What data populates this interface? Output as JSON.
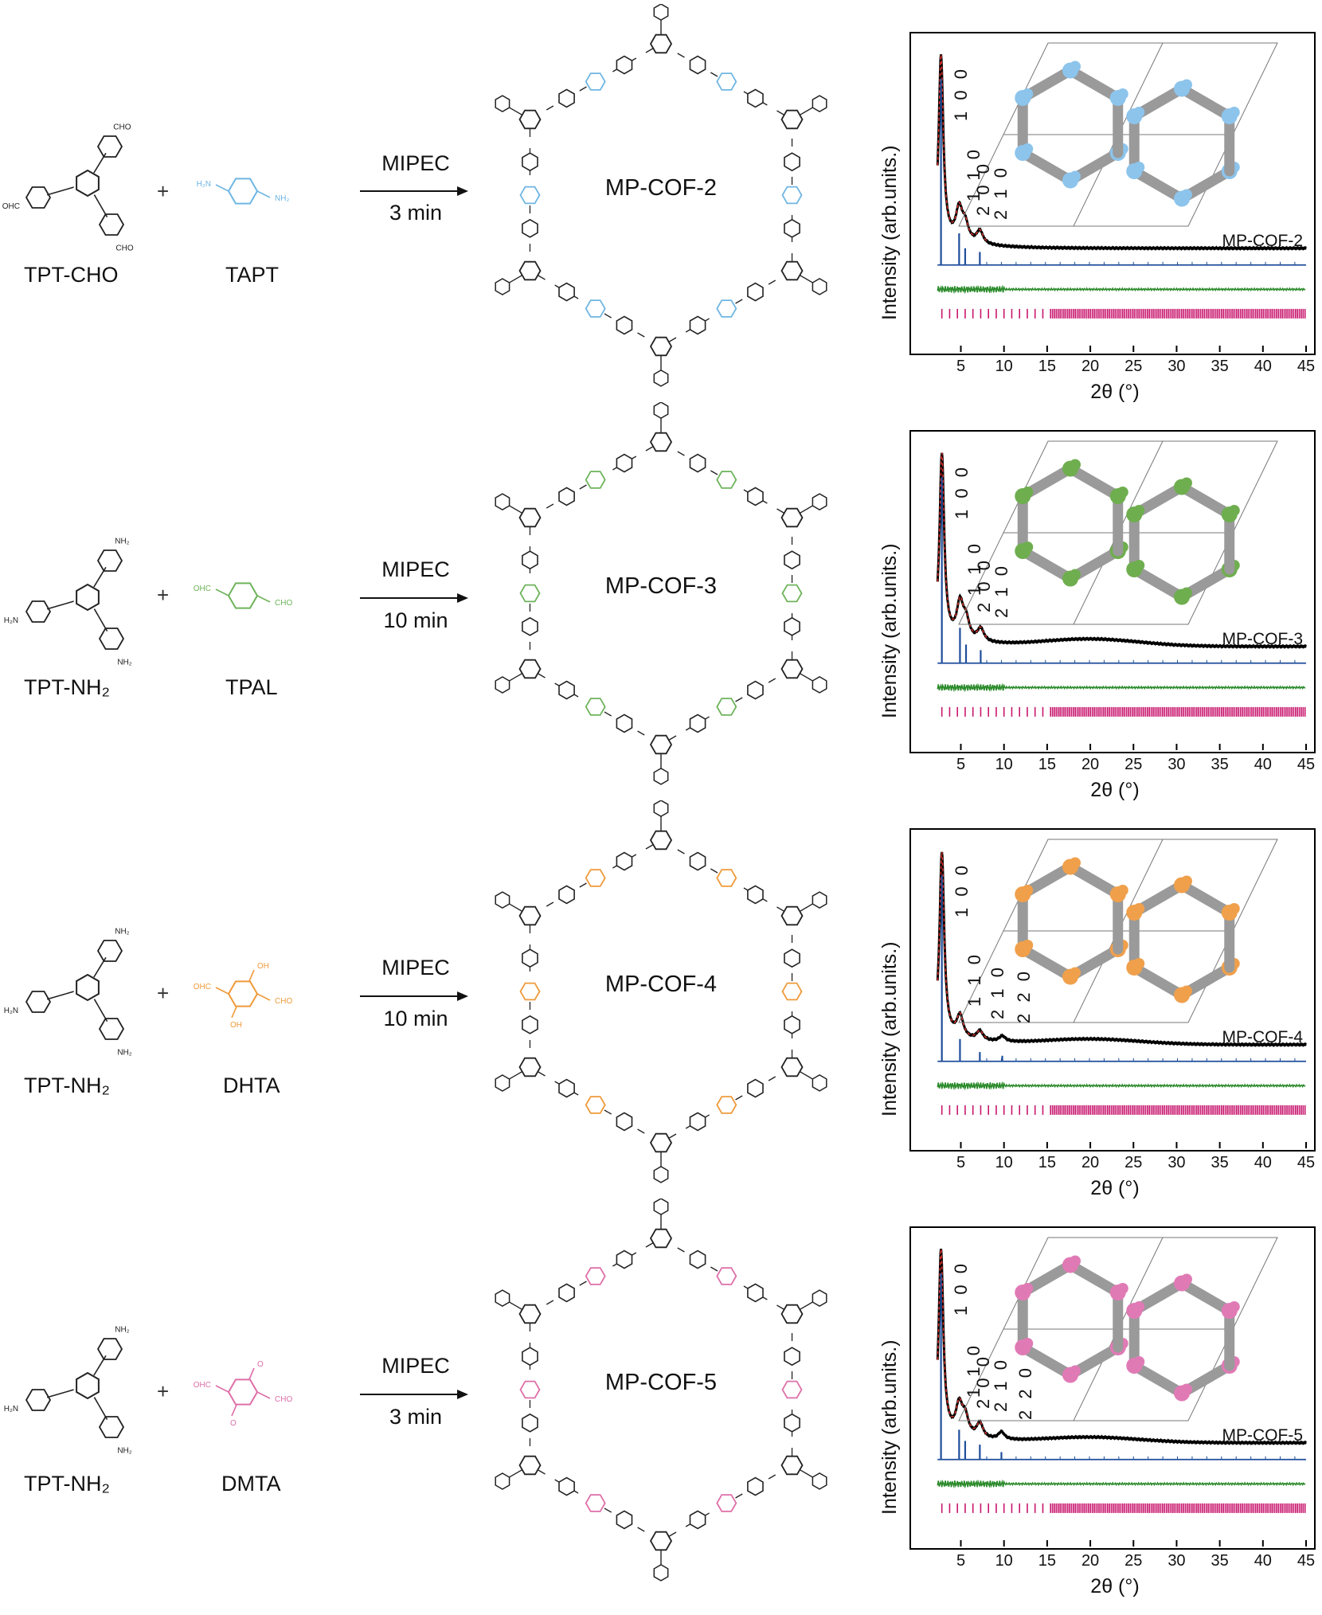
{
  "rows": [
    {
      "reactant1": "TPT-CHO",
      "reactant2": "TAPT",
      "linker_color": "#6fb6e3",
      "reactant1_groups": {
        "top": "CHO",
        "left": "OHC",
        "bottom": "CHO"
      },
      "reactant2_groups": {
        "left": "H₂N",
        "right": "NH₂",
        "top": "",
        "bottom": ""
      },
      "method": "MIPEC",
      "time": "3 min",
      "product": "MP-COF-2",
      "inset_accent": "#8cc4ec"
    },
    {
      "reactant1": "TPT-NH₂",
      "reactant2": "TPAL",
      "linker_color": "#6db35a",
      "reactant1_groups": {
        "top": "NH₂",
        "left": "H₂N",
        "bottom": "NH₂"
      },
      "reactant2_groups": {
        "left": "OHC",
        "right": "CHO",
        "top": "",
        "bottom": ""
      },
      "method": "MIPEC",
      "time": "10 min",
      "product": "MP-COF-3",
      "inset_accent": "#6fae4f"
    },
    {
      "reactant1": "TPT-NH₂",
      "reactant2": "DHTA",
      "linker_color": "#ef9a3a",
      "reactant1_groups": {
        "top": "NH₂",
        "left": "H₂N",
        "bottom": "NH₂"
      },
      "reactant2_groups": {
        "left": "OHC",
        "right": "CHO",
        "top": "OH",
        "bottom": "OH"
      },
      "method": "MIPEC",
      "time": "10 min",
      "product": "MP-COF-4",
      "inset_accent": "#f0a04b"
    },
    {
      "reactant1": "TPT-NH₂",
      "reactant2": "DMTA",
      "linker_color": "#de6fa8",
      "reactant1_groups": {
        "top": "NH₂",
        "left": "H₂N",
        "bottom": "NH₂"
      },
      "reactant2_groups": {
        "left": "OHC",
        "right": "CHO",
        "top": "O",
        "bottom": "O"
      },
      "method": "MIPEC",
      "time": "3 min",
      "product": "MP-COF-5",
      "inset_accent": "#e07ab5"
    }
  ],
  "chart_data": [
    {
      "type": "line",
      "name": "MP-COF-2",
      "xlabel": "2θ (°)",
      "ylabel": "Intensity (arb.units.)",
      "xlim": [
        2,
        45
      ],
      "xticks": [
        5,
        10,
        15,
        20,
        25,
        30,
        35,
        40,
        45
      ],
      "peaks": [
        {
          "hkl": "1 0 0",
          "x": 2.7,
          "rel": 1.0
        },
        {
          "hkl": "1 1 0",
          "x": 4.8,
          "rel": 0.17
        },
        {
          "hkl": "2 0 0",
          "x": 5.5,
          "rel": 0.09
        },
        {
          "hkl": "2 1 0",
          "x": 7.2,
          "rel": 0.07
        }
      ],
      "amorphous_hump": 0.0,
      "series": [
        {
          "name": "Experimental",
          "color": "#000000"
        },
        {
          "name": "Pawley refined",
          "color": "#e0302a"
        },
        {
          "name": "Simulated",
          "color": "#1f4e9b"
        },
        {
          "name": "Difference",
          "color": "#2a8a2a"
        },
        {
          "name": "Bragg positions",
          "color": "#c8166e"
        }
      ],
      "colors": {
        "inset_accent": "#8cc4ec"
      }
    },
    {
      "type": "line",
      "name": "MP-COF-3",
      "xlabel": "2θ (°)",
      "ylabel": "Intensity (arb.units.)",
      "xlim": [
        2,
        45
      ],
      "xticks": [
        5,
        10,
        15,
        20,
        25,
        30,
        35,
        40,
        45
      ],
      "peaks": [
        {
          "hkl": "1 0 0",
          "x": 2.8,
          "rel": 1.0
        },
        {
          "hkl": "1 1 0",
          "x": 4.9,
          "rel": 0.19
        },
        {
          "hkl": "2 0 0",
          "x": 5.6,
          "rel": 0.1
        },
        {
          "hkl": "2 1 0",
          "x": 7.3,
          "rel": 0.07
        }
      ],
      "amorphous_hump": 0.04,
      "series": [
        {
          "name": "Experimental",
          "color": "#000000"
        },
        {
          "name": "Pawley refined",
          "color": "#e0302a"
        },
        {
          "name": "Simulated",
          "color": "#1f4e9b"
        },
        {
          "name": "Difference",
          "color": "#2a8a2a"
        },
        {
          "name": "Bragg positions",
          "color": "#c8166e"
        }
      ],
      "colors": {
        "inset_accent": "#6fae4f"
      }
    },
    {
      "type": "line",
      "name": "MP-COF-4",
      "xlabel": "2θ (°)",
      "ylabel": "Intensity (arb.units.)",
      "xlim": [
        2,
        45
      ],
      "xticks": [
        5,
        10,
        15,
        20,
        25,
        30,
        35,
        40,
        45
      ],
      "peaks": [
        {
          "hkl": "1 0 0",
          "x": 2.8,
          "rel": 1.0
        },
        {
          "hkl": "1 1 0",
          "x": 4.9,
          "rel": 0.12
        },
        {
          "hkl": "2 1 0",
          "x": 7.2,
          "rel": 0.05
        },
        {
          "hkl": "2 2 0",
          "x": 9.8,
          "rel": 0.03
        }
      ],
      "amorphous_hump": 0.03,
      "series": [
        {
          "name": "Experimental",
          "color": "#000000"
        },
        {
          "name": "Pawley refined",
          "color": "#e0302a"
        },
        {
          "name": "Simulated",
          "color": "#1f4e9b"
        },
        {
          "name": "Difference",
          "color": "#2a8a2a"
        },
        {
          "name": "Bragg positions",
          "color": "#c8166e"
        }
      ],
      "colors": {
        "inset_accent": "#f0a04b"
      }
    },
    {
      "type": "line",
      "name": "MP-COF-5",
      "xlabel": "2θ (°)",
      "ylabel": "Intensity (arb.units.)",
      "xlim": [
        2,
        45
      ],
      "xticks": [
        5,
        10,
        15,
        20,
        25,
        30,
        35,
        40,
        45
      ],
      "peaks": [
        {
          "hkl": "1 0 0",
          "x": 2.7,
          "rel": 1.0
        },
        {
          "hkl": "1 1 0",
          "x": 4.8,
          "rel": 0.16
        },
        {
          "hkl": "2 0 0",
          "x": 5.5,
          "rel": 0.1
        },
        {
          "hkl": "2 1 0",
          "x": 7.2,
          "rel": 0.08
        },
        {
          "hkl": "2 2 0",
          "x": 9.7,
          "rel": 0.04
        }
      ],
      "amorphous_hump": 0.03,
      "series": [
        {
          "name": "Experimental",
          "color": "#000000"
        },
        {
          "name": "Pawley refined",
          "color": "#e0302a"
        },
        {
          "name": "Simulated",
          "color": "#1f4e9b"
        },
        {
          "name": "Difference",
          "color": "#2a8a2a"
        },
        {
          "name": "Bragg positions",
          "color": "#c8166e"
        }
      ],
      "colors": {
        "inset_accent": "#e07ab5"
      }
    }
  ]
}
